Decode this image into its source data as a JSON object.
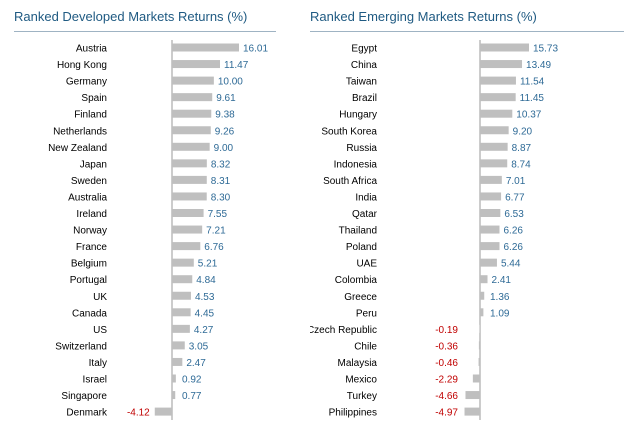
{
  "colors": {
    "title": "#1f5a82",
    "bar": "#bfbfbf",
    "positive_label": "#2e6a96",
    "negative_label": "#c00000",
    "category_label": "#000000",
    "axis": "#808080",
    "rule": "#9fb3c3"
  },
  "chart_data": [
    {
      "type": "bar",
      "orientation": "horizontal",
      "title": "Ranked Developed Markets Returns (%)",
      "xlabel": "",
      "ylabel": "",
      "xlim": [
        -4.12,
        16.01
      ],
      "grid": false,
      "categories": [
        "Austria",
        "Hong Kong",
        "Germany",
        "Spain",
        "Finland",
        "Netherlands",
        "New Zealand",
        "Japan",
        "Sweden",
        "Australia",
        "Ireland",
        "Norway",
        "France",
        "Belgium",
        "Portugal",
        "UK",
        "Canada",
        "US",
        "Switzerland",
        "Italy",
        "Israel",
        "Singapore",
        "Denmark"
      ],
      "values": [
        16.01,
        11.47,
        10.0,
        9.61,
        9.38,
        9.26,
        9.0,
        8.32,
        8.31,
        8.3,
        7.55,
        7.21,
        6.76,
        5.21,
        4.84,
        4.53,
        4.45,
        4.27,
        3.05,
        2.47,
        0.92,
        0.77,
        -4.12
      ],
      "value_labels": [
        "16.01",
        "11.47",
        "10.00",
        "9.61",
        "9.38",
        "9.26",
        "9.00",
        "8.32",
        "8.31",
        "8.30",
        "7.55",
        "7.21",
        "6.76",
        "5.21",
        "4.84",
        "4.53",
        "4.45",
        "4.27",
        "3.05",
        "2.47",
        "0.92",
        "0.77",
        "-4.12"
      ]
    },
    {
      "type": "bar",
      "orientation": "horizontal",
      "title": "Ranked Emerging Markets Returns (%)",
      "xlabel": "",
      "ylabel": "",
      "xlim": [
        -4.97,
        15.73
      ],
      "grid": false,
      "categories": [
        "Egypt",
        "China",
        "Taiwan",
        "Brazil",
        "Hungary",
        "South Korea",
        "Russia",
        "Indonesia",
        "South Africa",
        "India",
        "Qatar",
        "Thailand",
        "Poland",
        "UAE",
        "Colombia",
        "Greece",
        "Peru",
        "Czech Republic",
        "Chile",
        "Malaysia",
        "Mexico",
        "Turkey",
        "Philippines"
      ],
      "values": [
        15.73,
        13.49,
        11.54,
        11.45,
        10.37,
        9.2,
        8.87,
        8.74,
        7.01,
        6.77,
        6.53,
        6.26,
        6.26,
        5.44,
        2.41,
        1.36,
        1.09,
        -0.19,
        -0.36,
        -0.46,
        -2.29,
        -4.66,
        -4.97
      ],
      "value_labels": [
        "15.73",
        "13.49",
        "11.54",
        "11.45",
        "10.37",
        "9.20",
        "8.87",
        "8.74",
        "7.01",
        "6.77",
        "6.53",
        "6.26",
        "6.26",
        "5.44",
        "2.41",
        "1.36",
        "1.09",
        "-0.19",
        "-0.36",
        "-0.46",
        "-2.29",
        "-4.66",
        "-4.97"
      ]
    }
  ]
}
